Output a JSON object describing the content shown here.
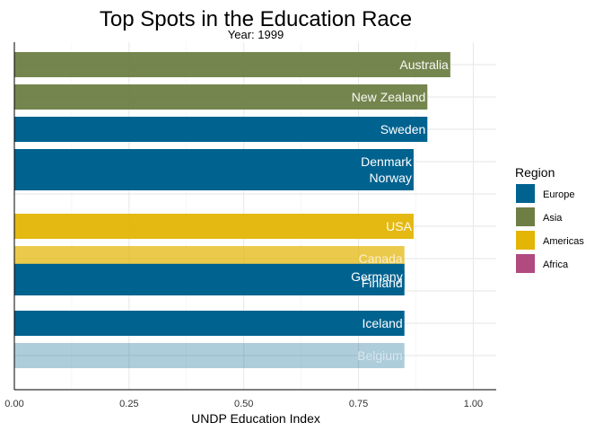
{
  "chart_data": {
    "type": "bar",
    "orientation": "horizontal",
    "title": "Top Spots in the Education Race",
    "subtitle": "Year: 1999",
    "xlabel": "UNDP Education Index",
    "ylabel": "",
    "xlim": [
      0,
      1.05
    ],
    "xticks": [
      0,
      0.25,
      0.5,
      0.75,
      1.0
    ],
    "xtick_labels": [
      "0.00",
      "0.25",
      "0.50",
      "0.75",
      "1.00"
    ],
    "grid": true,
    "legend": {
      "title": "Region",
      "placement": "right",
      "entries": [
        {
          "label": "Europe",
          "color": "#00628f"
        },
        {
          "label": "Asia",
          "color": "#6e7e45"
        },
        {
          "label": "Americas",
          "color": "#e3b505"
        },
        {
          "label": "Africa",
          "color": "#b04a7f"
        }
      ]
    },
    "bars": [
      {
        "label": "Australia",
        "value": 0.95,
        "region": "Asia",
        "rank": 1.0,
        "opacity": 0.95
      },
      {
        "label": "New Zealand",
        "value": 0.9,
        "region": "Asia",
        "rank": 2.0,
        "opacity": 0.95
      },
      {
        "label": "Sweden",
        "value": 0.9,
        "region": "Europe",
        "rank": 3.0,
        "opacity": 1.0
      },
      {
        "label": "Denmark",
        "value": 0.87,
        "region": "Europe",
        "rank": 4.0,
        "opacity": 1.0
      },
      {
        "label": "Norway",
        "value": 0.87,
        "region": "Europe",
        "rank": 4.5,
        "opacity": 1.0
      },
      {
        "label": "USA",
        "value": 0.87,
        "region": "Americas",
        "rank": 6.0,
        "opacity": 0.95
      },
      {
        "label": "Canada",
        "value": 0.85,
        "region": "Americas",
        "rank": 7.0,
        "opacity": 0.72
      },
      {
        "label": "Germany",
        "value": 0.85,
        "region": "Europe",
        "rank": 7.55,
        "opacity": 1.0
      },
      {
        "label": "Finland",
        "value": 0.85,
        "region": "Europe",
        "rank": 7.75,
        "opacity": 1.0
      },
      {
        "label": "Iceland",
        "value": 0.85,
        "region": "Europe",
        "rank": 9.0,
        "opacity": 1.0
      },
      {
        "label": "Belgium",
        "value": 0.85,
        "region": "Europe",
        "rank": 10.0,
        "opacity": 0.32
      }
    ]
  }
}
